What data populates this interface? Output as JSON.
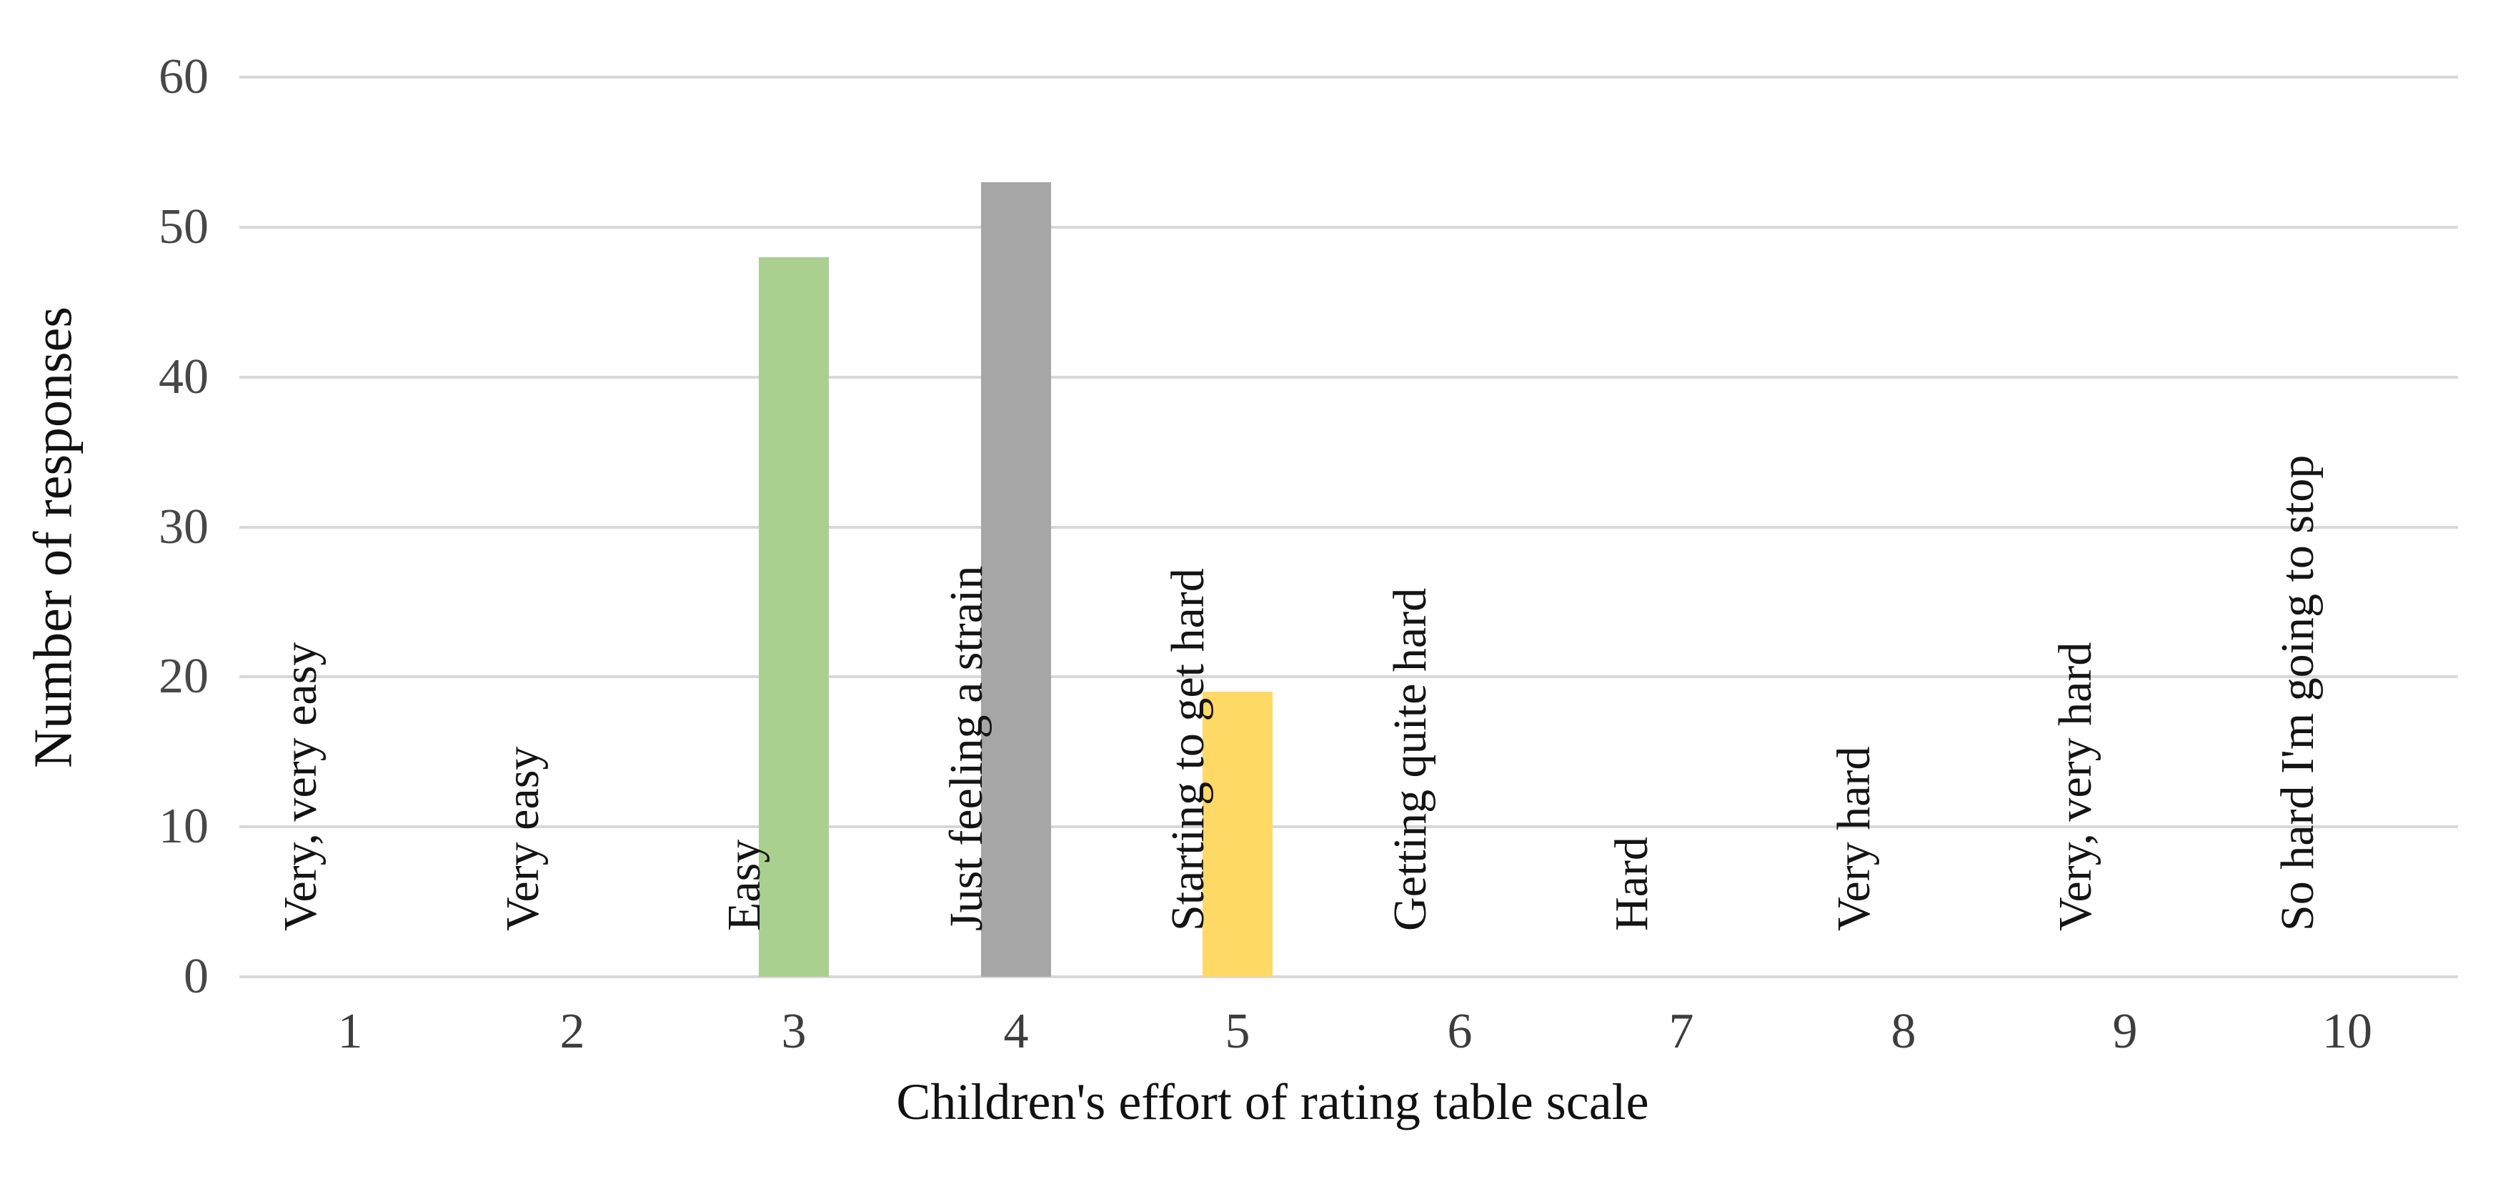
{
  "chart_data": {
    "type": "bar",
    "title": "",
    "xlabel": "Children's effort of rating table scale",
    "ylabel": "Number of responses",
    "ylim": [
      0,
      60
    ],
    "ytick_step": 10,
    "yticks": [
      "0",
      "10",
      "20",
      "30",
      "40",
      "50",
      "60"
    ],
    "grid": true,
    "legend": "none",
    "categories": [
      "1",
      "2",
      "3",
      "4",
      "5",
      "6",
      "7",
      "8",
      "9",
      "10"
    ],
    "category_labels": [
      "Very, very easy",
      "Very easy",
      "Easy",
      "Just feeling a strain",
      "Starting to get hard",
      "Getting quite hard",
      "Hard",
      "Very hard",
      "Very, very hard",
      "So hard I'm going to stop"
    ],
    "values": [
      0,
      0,
      48,
      53,
      19,
      0,
      0,
      0,
      0,
      0
    ],
    "bar_colors": [
      "none",
      "none",
      "#A9D08E",
      "#A6A6A6",
      "#FFD966",
      "none",
      "none",
      "none",
      "none",
      "none"
    ],
    "colors": {
      "bar_green": "#A9D08E",
      "bar_gray": "#A6A6A6",
      "bar_yellow": "#FFD966",
      "gridline": "#D8D8D8",
      "tick_text": "#474747",
      "axis_number_text": "#3D3D3D",
      "category_label_text": "#141414",
      "title_text": "#111111",
      "background": "#FFFFFF"
    }
  }
}
